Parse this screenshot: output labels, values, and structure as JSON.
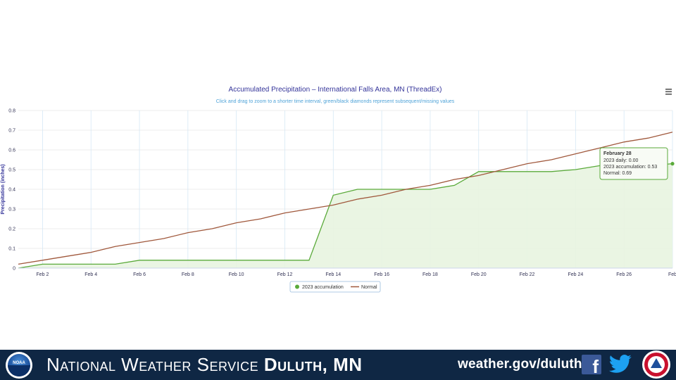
{
  "chart_data": {
    "type": "area",
    "title": "Accumulated Precipitation – International Falls Area, MN (ThreadEx)",
    "subtitle": "Click and drag to zoom to a shorter time interval, green/black diamonds represent subsequent/missing values",
    "ylabel": "Precipitation (inches)",
    "xlabel": "",
    "x": [
      1,
      2,
      3,
      4,
      5,
      6,
      7,
      8,
      9,
      10,
      11,
      12,
      13,
      14,
      15,
      16,
      17,
      18,
      19,
      20,
      21,
      22,
      23,
      24,
      25,
      26,
      27,
      28
    ],
    "xlim": [
      1,
      28
    ],
    "ylim": [
      0,
      0.8
    ],
    "x_ticks": [
      2,
      4,
      6,
      8,
      10,
      12,
      14,
      16,
      18,
      20,
      22,
      24,
      26,
      28
    ],
    "x_tick_labels": [
      "Feb 2",
      "Feb 4",
      "Feb 6",
      "Feb 8",
      "Feb 10",
      "Feb 12",
      "Feb 14",
      "Feb 16",
      "Feb 18",
      "Feb 20",
      "Feb 22",
      "Feb 24",
      "Feb 26",
      "Feb"
    ],
    "y_ticks": [
      0,
      0.1,
      0.2,
      0.3,
      0.4,
      0.5,
      0.6,
      0.7,
      0.8
    ],
    "y_tick_labels": [
      "0",
      "0.1",
      "0.2",
      "0.3",
      "0.4",
      "0.5",
      "0.6",
      "0.7",
      "0.8"
    ],
    "grid": true,
    "legend_position": "bottom-center",
    "series": [
      {
        "name": "2023 accumulation",
        "color": "#5aaa3a",
        "fill": "#e8f4e0",
        "marker": "circle",
        "values": [
          0.0,
          0.02,
          0.02,
          0.02,
          0.02,
          0.04,
          0.04,
          0.04,
          0.04,
          0.04,
          0.04,
          0.04,
          0.04,
          0.37,
          0.4,
          0.4,
          0.4,
          0.4,
          0.42,
          0.49,
          0.49,
          0.49,
          0.49,
          0.5,
          0.52,
          0.52,
          0.52,
          0.53
        ]
      },
      {
        "name": "Normal",
        "color": "#a0583c",
        "marker": "line",
        "values": [
          0.02,
          0.04,
          0.06,
          0.08,
          0.11,
          0.13,
          0.15,
          0.18,
          0.2,
          0.23,
          0.25,
          0.28,
          0.3,
          0.32,
          0.35,
          0.37,
          0.4,
          0.42,
          0.45,
          0.47,
          0.5,
          0.53,
          0.55,
          0.58,
          0.61,
          0.64,
          0.66,
          0.69
        ]
      }
    ],
    "tooltip": {
      "title": "February 28",
      "lines": [
        "2023 daily: 0.00",
        "2023 accumulation: 0.53",
        "Normal: 0.69"
      ]
    }
  },
  "menu_icon": "hamburger-icon",
  "footer": {
    "agency_name": "National Weather Service",
    "agency_office": "Duluth, MN",
    "url": "weather.gov/duluth",
    "icons": [
      "noaa-logo",
      "facebook-icon",
      "twitter-icon",
      "nws-logo"
    ],
    "facebook_glyph": "f",
    "noaa_logo_text": "NOAA",
    "background_color": "#0f2744"
  }
}
